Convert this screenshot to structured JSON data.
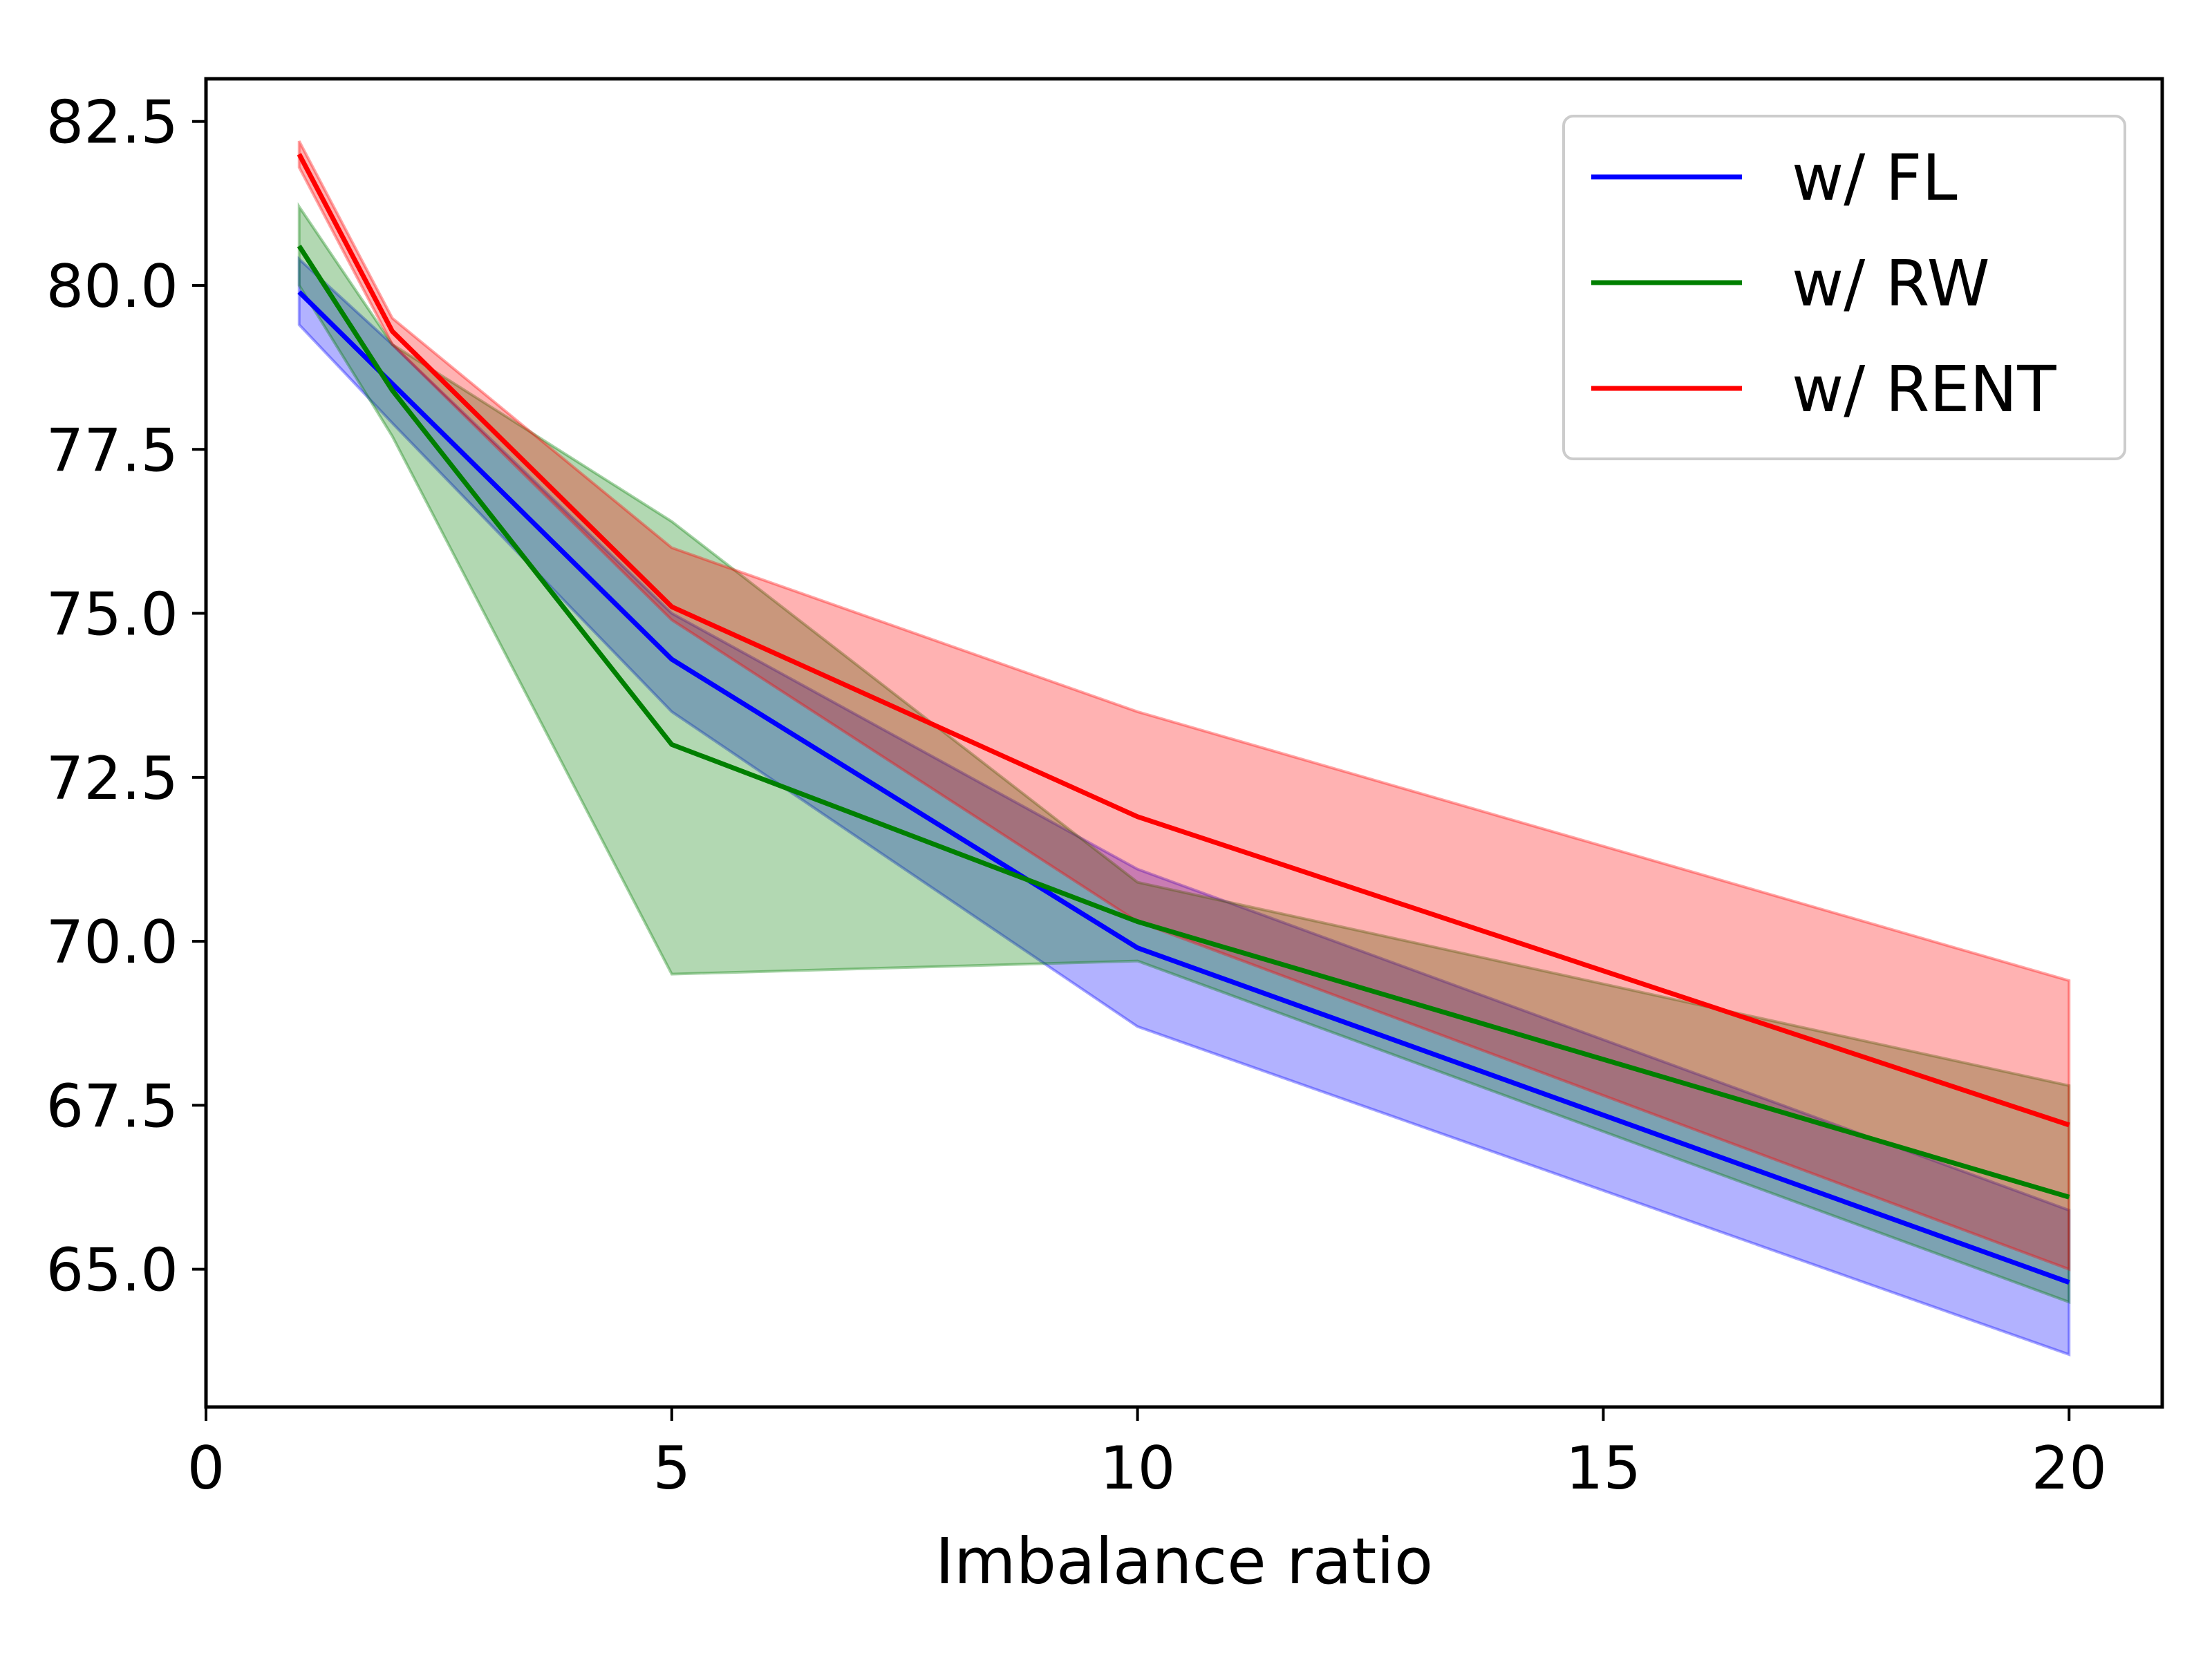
{
  "chart_data": {
    "type": "line",
    "title": "",
    "xlabel": "Imbalance ratio",
    "ylabel": "",
    "xlim": [
      0,
      21
    ],
    "ylim": [
      62.9,
      83.15
    ],
    "x_ticks": [
      0,
      5,
      10,
      15,
      20
    ],
    "x_tick_labels": [
      "0",
      "5",
      "10",
      "15",
      "20"
    ],
    "y_ticks": [
      65.0,
      67.5,
      70.0,
      72.5,
      75.0,
      77.5,
      80.0,
      82.5
    ],
    "y_tick_labels": [
      "65.0",
      "67.5",
      "70.0",
      "72.5",
      "75.0",
      "77.5",
      "80.0",
      "82.5"
    ],
    "grid": false,
    "legend_position": "top-right",
    "series": [
      {
        "name": "w/ FL",
        "color": "#0000ff",
        "x": [
          1,
          2,
          5,
          10,
          20
        ],
        "values": [
          79.9,
          78.5,
          74.3,
          69.9,
          64.8
        ],
        "band_upper": [
          80.4,
          79.1,
          75.0,
          71.1,
          65.9
        ],
        "band_lower": [
          79.4,
          77.9,
          73.5,
          68.7,
          63.7
        ]
      },
      {
        "name": "w/ RW",
        "color": "#007f00",
        "x": [
          1,
          2,
          5,
          10,
          20
        ],
        "values": [
          80.6,
          78.4,
          73.0,
          70.3,
          66.1
        ],
        "band_upper": [
          81.2,
          79.1,
          76.4,
          70.9,
          67.8
        ],
        "band_lower": [
          80.0,
          77.7,
          69.5,
          69.7,
          64.5
        ]
      },
      {
        "name": "w/ RENT",
        "color": "#ff0000",
        "x": [
          1,
          2,
          5,
          10,
          20
        ],
        "values": [
          82.0,
          79.3,
          75.1,
          71.9,
          67.2
        ],
        "band_upper": [
          82.2,
          79.5,
          76.0,
          73.5,
          69.4
        ],
        "band_lower": [
          81.8,
          79.1,
          74.9,
          70.3,
          65.0
        ]
      }
    ]
  }
}
